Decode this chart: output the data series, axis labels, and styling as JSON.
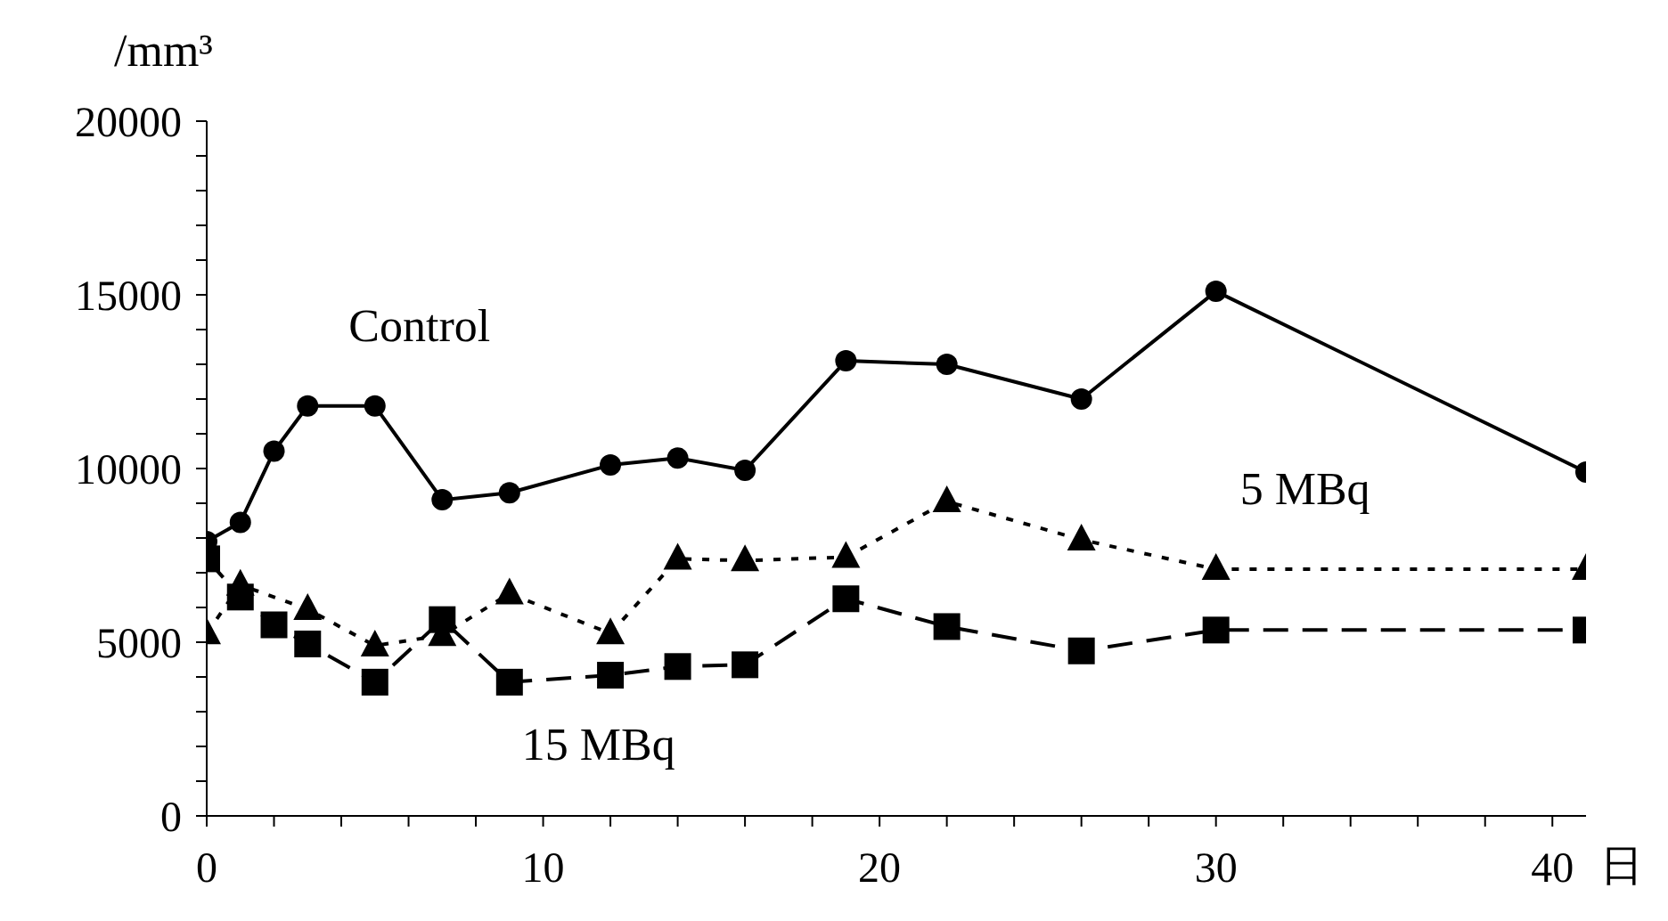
{
  "chart_data": {
    "type": "line",
    "ylabel": "/mm³",
    "xlabel": "日",
    "x": [
      0,
      1,
      2,
      3,
      5,
      7,
      9,
      12,
      14,
      16,
      19,
      22,
      26,
      30,
      41
    ],
    "series": [
      {
        "name": "Control",
        "color": "#000000",
        "marker": "circle",
        "line_style": "solid",
        "values": [
          7900,
          8450,
          10500,
          11800,
          11800,
          9100,
          9300,
          10100,
          10300,
          9950,
          13100,
          13000,
          12000,
          15100,
          9900
        ]
      },
      {
        "name": "5 MBq",
        "color": "#000000",
        "marker": "triangle",
        "line_style": "dotted",
        "x": [
          0,
          1,
          3,
          5,
          7,
          9,
          12,
          14,
          16,
          19,
          22,
          26,
          30,
          41
        ],
        "values": [
          5250,
          6650,
          5950,
          4900,
          5200,
          6400,
          5250,
          7400,
          7350,
          7450,
          9050,
          7950,
          7100,
          7100
        ]
      },
      {
        "name": "15 MBq",
        "color": "#000000",
        "marker": "square",
        "line_style": "dashed",
        "values": [
          7400,
          6300,
          5500,
          4950,
          3850,
          5650,
          3850,
          4050,
          4300,
          4350,
          6250,
          5450,
          4750,
          5350,
          5350
        ]
      }
    ],
    "xlim": [
      0,
      41
    ],
    "xticks": [
      0,
      {
        "value": 2,
        "label": null
      },
      {
        "value": 4,
        "label": null
      },
      {
        "value": 6,
        "label": null
      },
      {
        "value": 8,
        "label": null
      },
      10,
      {
        "value": 12,
        "label": null
      },
      {
        "value": 14,
        "label": null
      },
      {
        "value": 16,
        "label": null
      },
      {
        "value": 18,
        "label": null
      },
      20,
      {
        "value": 22,
        "label": null
      },
      {
        "value": 24,
        "label": null
      },
      {
        "value": 26,
        "label": null
      },
      {
        "value": 28,
        "label": null
      },
      30,
      {
        "value": 32,
        "label": null
      },
      {
        "value": 34,
        "label": null
      },
      {
        "value": 36,
        "label": null
      },
      {
        "value": 38,
        "label": null
      },
      40
    ],
    "ylim": [
      0,
      20000
    ],
    "yticks": [
      0,
      {
        "value": 1000,
        "label": null
      },
      {
        "value": 2000,
        "label": null
      },
      {
        "value": 3000,
        "label": null
      },
      {
        "value": 4000,
        "label": null
      },
      5000,
      {
        "value": 6000,
        "label": null
      },
      {
        "value": 7000,
        "label": null
      },
      {
        "value": 8000,
        "label": null
      },
      {
        "value": 9000,
        "label": null
      },
      10000,
      {
        "value": 11000,
        "label": null
      },
      {
        "value": 12000,
        "label": null
      },
      {
        "value": 13000,
        "label": null
      },
      {
        "value": 14000,
        "label": null
      },
      15000,
      {
        "value": 16000,
        "label": null
      },
      {
        "value": 17000,
        "label": null
      },
      {
        "value": 18000,
        "label": null
      },
      {
        "value": 19000,
        "label": null
      },
      20000
    ],
    "grid": false
  }
}
